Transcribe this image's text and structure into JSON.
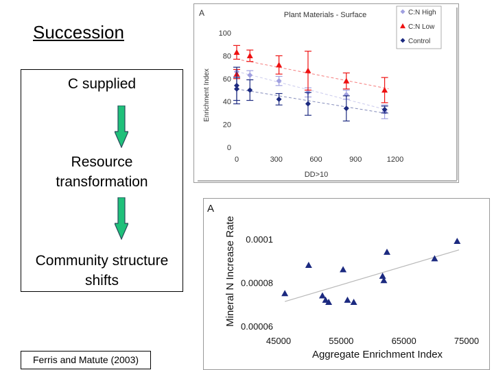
{
  "slide": {
    "title": "Succession",
    "steps": [
      "C supplied",
      "Resource",
      "transformation",
      "Community structure",
      "shifts"
    ],
    "citation": "Ferris and Matute (2003)"
  },
  "chart_data": [
    {
      "type": "scatter",
      "panel_letter": "A",
      "title": "Plant Materials - Surface",
      "xlabel": "DD>10",
      "ylabel": "Enrichment Index",
      "xlim": [
        0,
        1200
      ],
      "ylim": [
        0,
        100
      ],
      "xticks": [
        "0",
        "300",
        "600",
        "900",
        "1200"
      ],
      "yticks": [
        "0",
        "20",
        "40",
        "60",
        "80",
        "100"
      ],
      "grid": false,
      "legend": "top-right",
      "trendlines": "dashed linear",
      "series": [
        {
          "name": "C:N High",
          "color": "#a0a0e0",
          "marker": "diamond",
          "x": [
            0,
            100,
            320,
            540,
            830,
            1120
          ],
          "y": [
            66,
            63,
            58,
            48,
            46,
            31
          ],
          "err": [
            4,
            4,
            4,
            4,
            4,
            6
          ]
        },
        {
          "name": "C:N Low",
          "color": "#ee1111",
          "marker": "triangle",
          "x": [
            0,
            0,
            100,
            320,
            540,
            830,
            1120
          ],
          "y": [
            83,
            64,
            80,
            72,
            67,
            58,
            50
          ],
          "err": [
            6,
            4,
            5,
            8,
            17,
            7,
            11
          ]
        },
        {
          "name": "Control",
          "color": "#1c2a80",
          "marker": "diamond",
          "x": [
            0,
            0,
            100,
            320,
            540,
            830,
            1120
          ],
          "y": [
            54,
            51,
            50,
            42,
            38,
            34,
            33
          ],
          "err": [
            16,
            10,
            9,
            5,
            10,
            11,
            3
          ]
        }
      ]
    },
    {
      "type": "scatter",
      "panel_letter": "A",
      "xlabel": "Aggregate Enrichment Index",
      "ylabel": "Mineral N Increase Rate",
      "xlim": [
        45000,
        75000
      ],
      "ylim": [
        6e-05,
        0.00011
      ],
      "xticks": [
        "45000",
        "55000",
        "65000",
        "75000"
      ],
      "yticks": [
        "0.00006",
        "0.00008",
        "0.0001"
      ],
      "grid": false,
      "trendline": "linear",
      "marker_color": "#1c2a80",
      "x": [
        46000,
        49800,
        52000,
        52500,
        53000,
        55300,
        56000,
        57000,
        61600,
        61800,
        62300,
        69900,
        73500
      ],
      "y": [
        7.5e-05,
        8.8e-05,
        7.4e-05,
        7.2e-05,
        7.1e-05,
        8.6e-05,
        7.2e-05,
        7.1e-05,
        8.3e-05,
        8.1e-05,
        9.4e-05,
        9.1e-05,
        9.9e-05
      ]
    }
  ]
}
